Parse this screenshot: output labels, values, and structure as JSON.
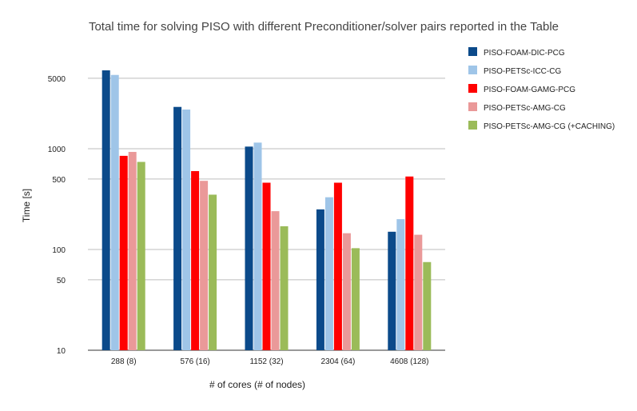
{
  "chart_data": {
    "type": "bar",
    "title": "Total time for solving PISO with different Preconditioner/solver pairs reported in the Table",
    "xlabel": "# of cores (# of nodes)",
    "ylabel": "Time [s]",
    "yscale": "log",
    "ylim": [
      10,
      10000
    ],
    "yticks": [
      "10",
      "50",
      "100",
      "500",
      "1000",
      "5000"
    ],
    "grid": true,
    "legend_position": "right",
    "categories": [
      "288 (8)",
      "576 (16)",
      "1152 (32)",
      "2304 (64)",
      "4608 (128)"
    ],
    "series": [
      {
        "name": "PISO-FOAM-DIC-PCG",
        "color": "#0b4a8a",
        "values": [
          6000,
          2600,
          1050,
          250,
          150
        ]
      },
      {
        "name": "PISO-PETSc-ICC-CG",
        "color": "#9fc5e8",
        "values": [
          5400,
          2450,
          1150,
          330,
          200
        ]
      },
      {
        "name": "PISO-FOAM-GAMG-PCG",
        "color": "#ff0000",
        "values": [
          850,
          600,
          460,
          460,
          530
        ]
      },
      {
        "name": "PISO-PETSc-AMG-CG",
        "color": "#ea9999",
        "values": [
          930,
          480,
          240,
          145,
          140
        ]
      },
      {
        "name": "PISO-PETSc-AMG-CG (+CACHING)",
        "color": "#9bbb59",
        "values": [
          740,
          350,
          170,
          103,
          75
        ]
      }
    ]
  }
}
